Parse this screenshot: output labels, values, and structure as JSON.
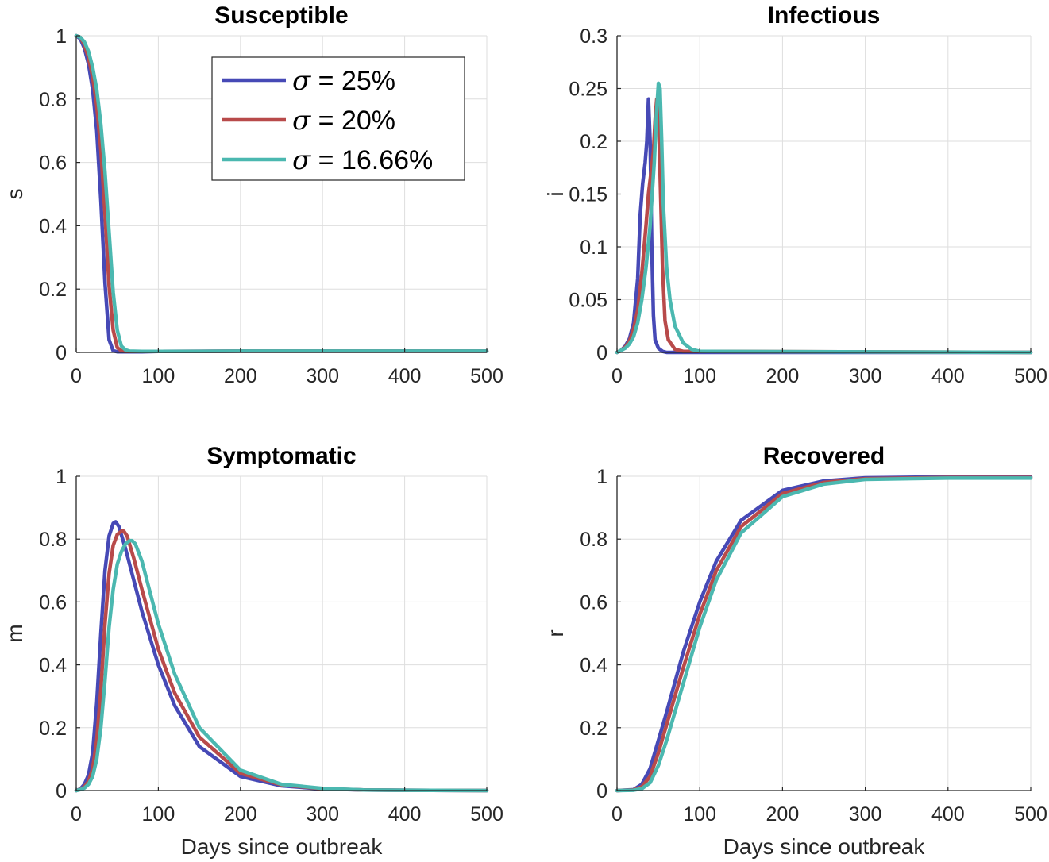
{
  "colors": {
    "s1": "#4649b6",
    "s2": "#b84a4a",
    "s3": "#4bb8b0",
    "grid": "#dedede",
    "axis": "#262626"
  },
  "legend": {
    "placement": "inside-top-right of first subplot",
    "entries": [
      {
        "symbol": "σ",
        "text": " = 25%"
      },
      {
        "symbol": "σ",
        "text": " = 20%"
      },
      {
        "symbol": "σ",
        "text": " = 16.66%"
      }
    ]
  },
  "chart_data": [
    {
      "type": "line",
      "title": "Susceptible",
      "xlabel": "",
      "ylabel": "s",
      "xlim": [
        0,
        500
      ],
      "ylim": [
        0,
        1
      ],
      "xticks": [
        0,
        100,
        200,
        300,
        400,
        500
      ],
      "xtick_labels": [
        "0",
        "100",
        "200",
        "300",
        "400",
        "500"
      ],
      "yticks": [
        0,
        0.2,
        0.4,
        0.6,
        0.8,
        1
      ],
      "ytick_labels": [
        "0",
        "0.2",
        "0.4",
        "0.6",
        "0.8",
        "1"
      ],
      "grid": true,
      "series": [
        {
          "x": [
            0,
            5,
            10,
            15,
            20,
            25,
            30,
            35,
            40,
            45,
            50,
            60,
            80,
            100,
            200,
            300,
            400,
            500
          ],
          "y": [
            1,
            0.99,
            0.96,
            0.91,
            0.83,
            0.7,
            0.48,
            0.22,
            0.04,
            0.005,
            0.002,
            0.002,
            0.002,
            0.003,
            0.004,
            0.004,
            0.004,
            0.004
          ]
        },
        {
          "x": [
            0,
            5,
            10,
            15,
            20,
            25,
            30,
            35,
            40,
            45,
            50,
            55,
            60,
            80,
            100,
            200,
            300,
            400,
            500
          ],
          "y": [
            1,
            0.995,
            0.97,
            0.93,
            0.87,
            0.78,
            0.64,
            0.44,
            0.21,
            0.07,
            0.015,
            0.005,
            0.003,
            0.003,
            0.003,
            0.004,
            0.004,
            0.004,
            0.004
          ]
        },
        {
          "x": [
            0,
            5,
            10,
            15,
            20,
            25,
            30,
            35,
            40,
            45,
            50,
            55,
            60,
            65,
            80,
            100,
            200,
            300,
            400,
            500
          ],
          "y": [
            1,
            0.995,
            0.98,
            0.95,
            0.9,
            0.83,
            0.72,
            0.57,
            0.38,
            0.19,
            0.07,
            0.02,
            0.008,
            0.004,
            0.003,
            0.003,
            0.004,
            0.004,
            0.004,
            0.004
          ]
        }
      ]
    },
    {
      "type": "line",
      "title": "Infectious",
      "xlabel": "",
      "ylabel": "i",
      "xlim": [
        0,
        500
      ],
      "ylim": [
        0,
        0.3
      ],
      "xticks": [
        0,
        100,
        200,
        300,
        400,
        500
      ],
      "xtick_labels": [
        "0",
        "100",
        "200",
        "300",
        "400",
        "500"
      ],
      "yticks": [
        0,
        0.05,
        0.1,
        0.15,
        0.2,
        0.25,
        0.3
      ],
      "ytick_labels": [
        "0",
        "0.05",
        "0.1",
        "0.15",
        "0.2",
        "0.25",
        "0.3"
      ],
      "grid": true,
      "series": [
        {
          "x": [
            0,
            5,
            10,
            15,
            20,
            25,
            28,
            31,
            34,
            36,
            38,
            40,
            42,
            44,
            46,
            50,
            55,
            60,
            80,
            500
          ],
          "y": [
            0,
            0.002,
            0.006,
            0.013,
            0.028,
            0.07,
            0.13,
            0.16,
            0.18,
            0.2,
            0.24,
            0.2,
            0.1,
            0.035,
            0.012,
            0.004,
            0.001,
            0,
            0,
            0
          ]
        },
        {
          "x": [
            0,
            5,
            10,
            15,
            20,
            25,
            30,
            35,
            38,
            41,
            44,
            46,
            48,
            50,
            52,
            55,
            58,
            62,
            70,
            80,
            500
          ],
          "y": [
            0,
            0.002,
            0.005,
            0.011,
            0.022,
            0.04,
            0.075,
            0.12,
            0.15,
            0.17,
            0.19,
            0.22,
            0.24,
            0.23,
            0.17,
            0.08,
            0.03,
            0.012,
            0.003,
            0.001,
            0
          ]
        },
        {
          "x": [
            0,
            5,
            10,
            15,
            20,
            25,
            30,
            35,
            40,
            45,
            48,
            50,
            52,
            54,
            56,
            60,
            64,
            70,
            80,
            90,
            100,
            500
          ],
          "y": [
            0,
            0.002,
            0.004,
            0.008,
            0.015,
            0.028,
            0.05,
            0.08,
            0.12,
            0.18,
            0.23,
            0.255,
            0.25,
            0.2,
            0.14,
            0.08,
            0.05,
            0.025,
            0.009,
            0.003,
            0.001,
            0
          ]
        }
      ]
    },
    {
      "type": "line",
      "title": "Symptomatic",
      "xlabel": "Days since outbreak",
      "ylabel": "m",
      "xlim": [
        0,
        500
      ],
      "ylim": [
        0,
        1
      ],
      "xticks": [
        0,
        100,
        200,
        300,
        400,
        500
      ],
      "xtick_labels": [
        "0",
        "100",
        "200",
        "300",
        "400",
        "500"
      ],
      "yticks": [
        0,
        0.2,
        0.4,
        0.6,
        0.8,
        1
      ],
      "ytick_labels": [
        "0",
        "0.2",
        "0.4",
        "0.6",
        "0.8",
        "1"
      ],
      "grid": true,
      "series": [
        {
          "x": [
            0,
            5,
            10,
            15,
            20,
            25,
            30,
            35,
            40,
            45,
            48,
            52,
            60,
            70,
            80,
            100,
            120,
            150,
            200,
            250,
            300,
            350,
            400,
            500
          ],
          "y": [
            0,
            0.005,
            0.02,
            0.05,
            0.12,
            0.28,
            0.5,
            0.7,
            0.81,
            0.85,
            0.855,
            0.84,
            0.77,
            0.67,
            0.57,
            0.4,
            0.27,
            0.14,
            0.045,
            0.015,
            0.005,
            0.002,
            0.001,
            0
          ]
        },
        {
          "x": [
            0,
            5,
            10,
            15,
            20,
            25,
            30,
            35,
            40,
            45,
            50,
            55,
            58,
            62,
            70,
            80,
            100,
            120,
            150,
            200,
            250,
            300,
            350,
            400,
            500
          ],
          "y": [
            0,
            0.004,
            0.012,
            0.03,
            0.07,
            0.16,
            0.32,
            0.53,
            0.69,
            0.78,
            0.815,
            0.825,
            0.825,
            0.81,
            0.74,
            0.64,
            0.45,
            0.31,
            0.17,
            0.055,
            0.018,
            0.006,
            0.002,
            0.001,
            0
          ]
        },
        {
          "x": [
            0,
            5,
            10,
            15,
            20,
            25,
            30,
            35,
            40,
            45,
            50,
            55,
            60,
            65,
            68,
            72,
            80,
            90,
            100,
            120,
            150,
            200,
            250,
            300,
            350,
            400,
            500
          ],
          "y": [
            0,
            0.003,
            0.008,
            0.02,
            0.045,
            0.1,
            0.2,
            0.35,
            0.52,
            0.64,
            0.72,
            0.76,
            0.785,
            0.795,
            0.795,
            0.785,
            0.73,
            0.63,
            0.53,
            0.37,
            0.2,
            0.065,
            0.02,
            0.007,
            0.002,
            0.001,
            0
          ]
        }
      ]
    },
    {
      "type": "line",
      "title": "Recovered",
      "xlabel": "Days since outbreak",
      "ylabel": "r",
      "xlim": [
        0,
        500
      ],
      "ylim": [
        0,
        1
      ],
      "xticks": [
        0,
        100,
        200,
        300,
        400,
        500
      ],
      "xtick_labels": [
        "0",
        "100",
        "200",
        "300",
        "400",
        "500"
      ],
      "yticks": [
        0,
        0.2,
        0.4,
        0.6,
        0.8,
        1
      ],
      "ytick_labels": [
        "0",
        "0.2",
        "0.4",
        "0.6",
        "0.8",
        "1"
      ],
      "grid": true,
      "series": [
        {
          "x": [
            0,
            20,
            30,
            40,
            50,
            60,
            80,
            100,
            120,
            150,
            200,
            250,
            300,
            400,
            500
          ],
          "y": [
            0,
            0.003,
            0.02,
            0.07,
            0.16,
            0.25,
            0.44,
            0.6,
            0.73,
            0.86,
            0.955,
            0.985,
            0.995,
            0.998,
            0.998
          ]
        },
        {
          "x": [
            0,
            20,
            30,
            40,
            50,
            60,
            80,
            100,
            120,
            150,
            200,
            250,
            300,
            400,
            500
          ],
          "y": [
            0,
            0.002,
            0.012,
            0.045,
            0.12,
            0.21,
            0.39,
            0.56,
            0.7,
            0.84,
            0.945,
            0.98,
            0.992,
            0.996,
            0.996
          ]
        },
        {
          "x": [
            0,
            20,
            30,
            40,
            50,
            60,
            80,
            100,
            120,
            150,
            200,
            250,
            300,
            400,
            500
          ],
          "y": [
            0,
            0.001,
            0.006,
            0.025,
            0.08,
            0.16,
            0.34,
            0.52,
            0.67,
            0.82,
            0.935,
            0.975,
            0.99,
            0.994,
            0.994
          ]
        }
      ]
    }
  ]
}
